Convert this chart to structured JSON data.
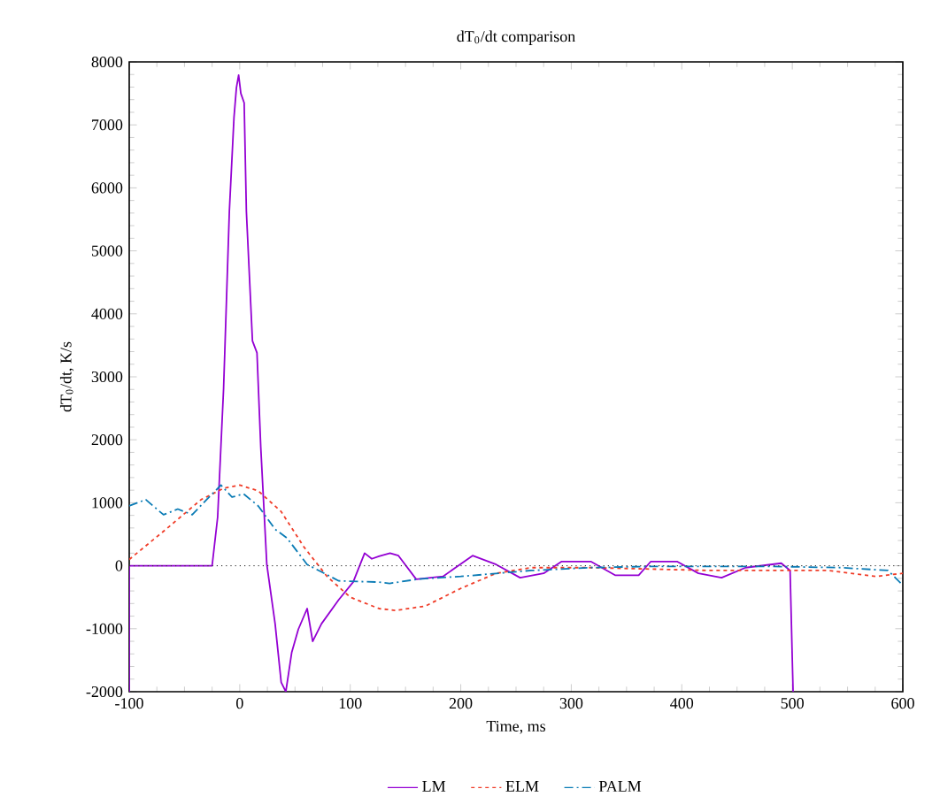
{
  "chart_data": {
    "type": "line",
    "title": "dT$_{0}$/dt comparison",
    "xlabel": "Time, ms",
    "ylabel": "dT$_{0}$/dt, K/s",
    "xlim": [
      -100,
      600
    ],
    "ylim": [
      -2000,
      8000
    ],
    "xticks": [
      -100,
      0,
      100,
      200,
      300,
      400,
      500,
      600
    ],
    "yticks": [
      -2000,
      -1000,
      0,
      1000,
      2000,
      3000,
      4000,
      5000,
      6000,
      7000,
      8000
    ],
    "grid": false,
    "legend": "bottom",
    "marker": "none",
    "ref_lines": [
      {
        "axis": "y",
        "value": 0,
        "color": "#333333",
        "line_style": "dotted"
      }
    ],
    "series": [
      {
        "name": "LM",
        "color": "#9400d3",
        "line_style": "solid",
        "x": [
          -100,
          -100,
          -25,
          -20,
          -14.6,
          -9.4,
          -5.2,
          -3,
          -1,
          1,
          4,
          6,
          11.5,
          15.6,
          19,
          24.5,
          32,
          37.5,
          41.7,
          47,
          53,
          61,
          66,
          74,
          89.6,
          102.6,
          113,
          119.5,
          126,
          136,
          143.6,
          159.7,
          183.9,
          210.7,
          232,
          253.7,
          275,
          291,
          318,
          339.6,
          361,
          371.8,
          396,
          415,
          436,
          457.7,
          490,
          498,
          500.7
        ],
        "values": [
          -2000,
          0,
          0,
          770,
          2820,
          5630,
          7120,
          7590,
          7790,
          7500,
          7350,
          5630,
          3570,
          3380,
          1890,
          20,
          -920,
          -1850,
          -2000,
          -1380,
          -1010,
          -680,
          -1200,
          -920,
          -540,
          -260,
          200,
          110,
          150,
          200,
          160,
          -215,
          -170,
          160,
          20,
          -190,
          -120,
          65,
          65,
          -150,
          -150,
          65,
          65,
          -120,
          -190,
          -30,
          40,
          -75,
          -2000
        ]
      },
      {
        "name": "ELM",
        "color": "#f03c28",
        "line_style": "dashed",
        "x": [
          -100,
          -66.7,
          -35,
          -14.6,
          0,
          16.7,
          37.5,
          58,
          79,
          100,
          126,
          141,
          168,
          200,
          232,
          264,
          318,
          425,
          533,
          576,
          600
        ],
        "values": [
          100,
          580,
          1050,
          1230,
          1280,
          1190,
          860,
          300,
          -170,
          -500,
          -680,
          -710,
          -640,
          -360,
          -120,
          -30,
          -30,
          -75,
          -75,
          -170,
          -120
        ]
      },
      {
        "name": "PALM",
        "color": "#0a7bb5",
        "line_style": "dashdot",
        "x": [
          -100,
          -85,
          -69,
          -56,
          -43,
          -30,
          -17,
          -7,
          3.6,
          16.7,
          32,
          42.7,
          61,
          89.6,
          126,
          135.6,
          162.5,
          200,
          264,
          318,
          372,
          479,
          543.6,
          586.6,
          600
        ],
        "values": [
          950,
          1050,
          810,
          900,
          810,
          1050,
          1280,
          1090,
          1140,
          950,
          580,
          440,
          20,
          -240,
          -260,
          -280,
          -210,
          -170,
          -75,
          -30,
          -10,
          -10,
          -30,
          -75,
          -310
        ]
      }
    ]
  }
}
